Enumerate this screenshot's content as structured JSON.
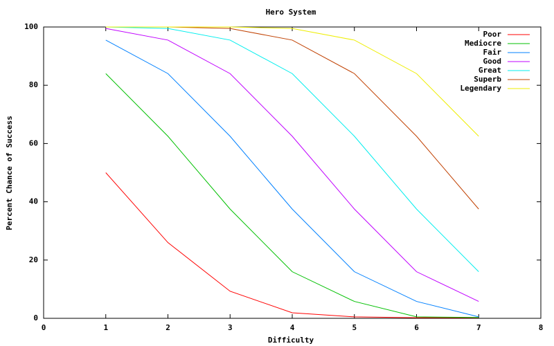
{
  "chart_data": {
    "type": "line",
    "title": "Hero System",
    "x_label": "Difficulty",
    "y_label": "Percent Chance of Success",
    "x": [
      1,
      2,
      3,
      4,
      5,
      6,
      7
    ],
    "xlim": [
      0,
      8
    ],
    "xticks": [
      0,
      1,
      2,
      3,
      4,
      5,
      6,
      7,
      8
    ],
    "ylim": [
      0,
      100
    ],
    "yticks": [
      0,
      20,
      40,
      60,
      80,
      100
    ],
    "legend": "top-right",
    "grid": false,
    "series": [
      {
        "name": "Poor",
        "color": "#ff0000",
        "values": [
          50,
          26,
          9.3,
          1.9,
          0.5,
          0.2,
          0.2
        ]
      },
      {
        "name": "Mediocre",
        "color": "#00c000",
        "values": [
          84,
          62.5,
          37.5,
          16,
          5.8,
          0.5,
          0.3
        ]
      },
      {
        "name": "Fair",
        "color": "#0080ff",
        "values": [
          95.5,
          84,
          62.5,
          37.5,
          16,
          5.8,
          0.5
        ]
      },
      {
        "name": "Good",
        "color": "#c000ff",
        "values": [
          99.5,
          95.5,
          84,
          62.5,
          37.5,
          16,
          5.8
        ]
      },
      {
        "name": "Great",
        "color": "#00eeee",
        "values": [
          100,
          99.5,
          95.5,
          84,
          62.5,
          37.5,
          16
        ]
      },
      {
        "name": "Superb",
        "color": "#c04000",
        "values": [
          100,
          100,
          99.5,
          95.5,
          84,
          62.5,
          37.5
        ]
      },
      {
        "name": "Legendary",
        "color": "#eeee00",
        "values": [
          100,
          100,
          100,
          99.5,
          95.5,
          84,
          62.5
        ]
      }
    ]
  }
}
